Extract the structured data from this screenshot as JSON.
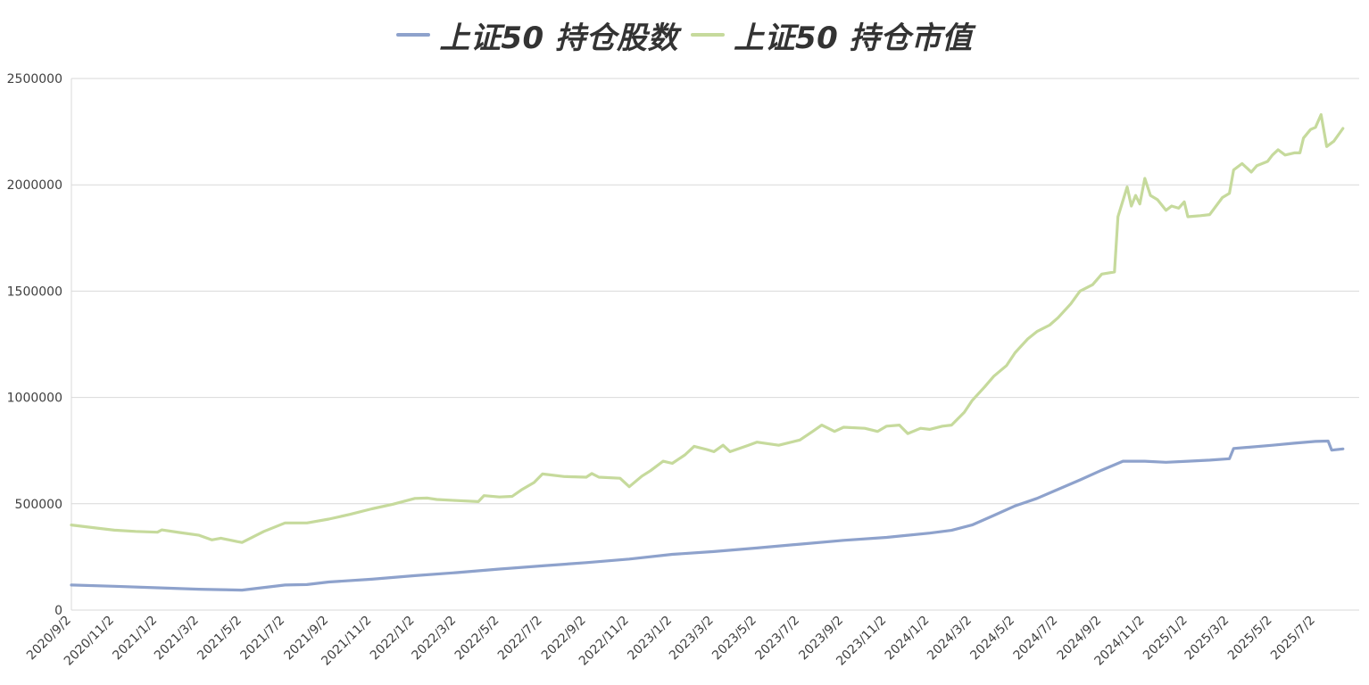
{
  "chart_data": {
    "type": "line",
    "title": "",
    "xlabel": "",
    "ylabel": "",
    "ylim": [
      0,
      2500000
    ],
    "y_ticks": [
      "0",
      "500000",
      "1000000",
      "1500000",
      "2000000",
      "2500000"
    ],
    "x_range": [
      "2020-09-02",
      "2025-09-02"
    ],
    "x_tick_labels": [
      {
        "date": "2020-09-02",
        "label": "2020/9/2"
      },
      {
        "date": "2020-11-02",
        "label": "2020/11/2"
      },
      {
        "date": "2021-01-02",
        "label": "2021/1/2"
      },
      {
        "date": "2021-03-02",
        "label": "2021/3/2"
      },
      {
        "date": "2021-05-02",
        "label": "2021/5/2"
      },
      {
        "date": "2021-07-02",
        "label": "2021/7/2"
      },
      {
        "date": "2021-09-02",
        "label": "2021/9/2"
      },
      {
        "date": "2021-11-02",
        "label": "2021/11/2"
      },
      {
        "date": "2022-01-02",
        "label": "2022/1/2"
      },
      {
        "date": "2022-03-02",
        "label": "2022/3/2"
      },
      {
        "date": "2022-05-02",
        "label": "2022/5/2"
      },
      {
        "date": "2022-07-02",
        "label": "2022/7/2"
      },
      {
        "date": "2022-09-02",
        "label": "2022/9/2"
      },
      {
        "date": "2022-11-02",
        "label": "2022/11/2"
      },
      {
        "date": "2023-01-02",
        "label": "2023/1/2"
      },
      {
        "date": "2023-03-02",
        "label": "2023/3/2"
      },
      {
        "date": "2023-05-02",
        "label": "2023/5/2"
      },
      {
        "date": "2023-07-02",
        "label": "2023/7/2"
      },
      {
        "date": "2023-09-02",
        "label": "2023/9/2"
      },
      {
        "date": "2023-11-02",
        "label": "2023/11/2"
      },
      {
        "date": "2024-01-02",
        "label": "2024/1/2"
      },
      {
        "date": "2024-03-02",
        "label": "2024/3/2"
      },
      {
        "date": "2024-05-02",
        "label": "2024/5/2"
      },
      {
        "date": "2024-07-02",
        "label": "2024/7/2"
      },
      {
        "date": "2024-09-02",
        "label": "2024/9/2"
      },
      {
        "date": "2024-11-02",
        "label": "2024/11/2"
      },
      {
        "date": "2025-01-02",
        "label": "2025/1/2"
      },
      {
        "date": "2025-03-02",
        "label": "2025/3/2"
      },
      {
        "date": "2025-05-02",
        "label": "2025/5/2"
      },
      {
        "date": "2025-07-02",
        "label": "2025/7/2"
      }
    ],
    "grid": true,
    "legend_position": "top-center",
    "series": [
      {
        "name": "上证50 持仓股数",
        "color": "#8ea2cc",
        "points": [
          [
            "2020-09-02",
            118000
          ],
          [
            "2020-11-02",
            112000
          ],
          [
            "2021-01-02",
            105000
          ],
          [
            "2021-03-02",
            98000
          ],
          [
            "2021-04-02",
            96000
          ],
          [
            "2021-05-02",
            94000
          ],
          [
            "2021-07-02",
            118000
          ],
          [
            "2021-08-02",
            120000
          ],
          [
            "2021-09-02",
            132000
          ],
          [
            "2021-11-02",
            145000
          ],
          [
            "2022-01-02",
            162000
          ],
          [
            "2022-03-02",
            176000
          ],
          [
            "2022-05-02",
            193000
          ],
          [
            "2022-07-02",
            208000
          ],
          [
            "2022-09-02",
            223000
          ],
          [
            "2022-11-02",
            240000
          ],
          [
            "2023-01-02",
            262000
          ],
          [
            "2023-03-02",
            275000
          ],
          [
            "2023-05-02",
            292000
          ],
          [
            "2023-07-02",
            310000
          ],
          [
            "2023-09-02",
            328000
          ],
          [
            "2023-11-02",
            342000
          ],
          [
            "2024-01-02",
            362000
          ],
          [
            "2024-02-02",
            375000
          ],
          [
            "2024-03-02",
            400000
          ],
          [
            "2024-04-02",
            445000
          ],
          [
            "2024-05-02",
            490000
          ],
          [
            "2024-06-02",
            525000
          ],
          [
            "2024-07-02",
            568000
          ],
          [
            "2024-08-02",
            612000
          ],
          [
            "2024-09-02",
            658000
          ],
          [
            "2024-10-02",
            700000
          ],
          [
            "2024-11-02",
            700000
          ],
          [
            "2024-12-02",
            695000
          ],
          [
            "2025-01-02",
            700000
          ],
          [
            "2025-02-02",
            705000
          ],
          [
            "2025-03-02",
            712000
          ],
          [
            "2025-03-08",
            760000
          ],
          [
            "2025-05-02",
            775000
          ],
          [
            "2025-06-02",
            785000
          ],
          [
            "2025-07-02",
            793000
          ],
          [
            "2025-07-20",
            795000
          ],
          [
            "2025-07-25",
            752000
          ],
          [
            "2025-08-10",
            758000
          ]
        ]
      },
      {
        "name": "上证50 持仓市值",
        "color": "#c6da9c",
        "points": [
          [
            "2020-09-02",
            400000
          ],
          [
            "2020-10-02",
            388000
          ],
          [
            "2020-11-02",
            376000
          ],
          [
            "2020-12-02",
            370000
          ],
          [
            "2021-01-02",
            366000
          ],
          [
            "2021-01-08",
            377000
          ],
          [
            "2021-02-02",
            365000
          ],
          [
            "2021-03-02",
            352000
          ],
          [
            "2021-03-20",
            330000
          ],
          [
            "2021-04-02",
            338000
          ],
          [
            "2021-04-25",
            322000
          ],
          [
            "2021-05-02",
            318000
          ],
          [
            "2021-06-02",
            370000
          ],
          [
            "2021-07-02",
            410000
          ],
          [
            "2021-08-02",
            410000
          ],
          [
            "2021-09-02",
            428000
          ],
          [
            "2021-10-02",
            450000
          ],
          [
            "2021-11-02",
            476000
          ],
          [
            "2021-12-02",
            498000
          ],
          [
            "2022-01-02",
            525000
          ],
          [
            "2022-01-20",
            527000
          ],
          [
            "2022-02-02",
            520000
          ],
          [
            "2022-03-02",
            515000
          ],
          [
            "2022-04-02",
            510000
          ],
          [
            "2022-04-10",
            538000
          ],
          [
            "2022-05-02",
            532000
          ],
          [
            "2022-05-20",
            535000
          ],
          [
            "2022-06-02",
            565000
          ],
          [
            "2022-06-20",
            600000
          ],
          [
            "2022-07-02",
            640000
          ],
          [
            "2022-08-02",
            628000
          ],
          [
            "2022-09-02",
            625000
          ],
          [
            "2022-09-10",
            642000
          ],
          [
            "2022-09-20",
            625000
          ],
          [
            "2022-10-20",
            620000
          ],
          [
            "2022-11-02",
            580000
          ],
          [
            "2022-11-20",
            630000
          ],
          [
            "2022-12-02",
            655000
          ],
          [
            "2022-12-20",
            700000
          ],
          [
            "2023-01-02",
            690000
          ],
          [
            "2023-01-20",
            730000
          ],
          [
            "2023-02-02",
            770000
          ],
          [
            "2023-02-20",
            755000
          ],
          [
            "2023-03-02",
            745000
          ],
          [
            "2023-03-15",
            775000
          ],
          [
            "2023-03-25",
            745000
          ],
          [
            "2023-04-20",
            775000
          ],
          [
            "2023-05-02",
            790000
          ],
          [
            "2023-06-02",
            775000
          ],
          [
            "2023-07-02",
            800000
          ],
          [
            "2023-07-20",
            840000
          ],
          [
            "2023-08-02",
            870000
          ],
          [
            "2023-08-20",
            840000
          ],
          [
            "2023-09-02",
            860000
          ],
          [
            "2023-10-02",
            855000
          ],
          [
            "2023-10-20",
            840000
          ],
          [
            "2023-11-02",
            865000
          ],
          [
            "2023-11-20",
            870000
          ],
          [
            "2023-12-02",
            830000
          ],
          [
            "2023-12-20",
            855000
          ],
          [
            "2024-01-02",
            850000
          ],
          [
            "2024-01-20",
            865000
          ],
          [
            "2024-02-02",
            870000
          ],
          [
            "2024-02-20",
            930000
          ],
          [
            "2024-03-02",
            985000
          ],
          [
            "2024-03-20",
            1050000
          ],
          [
            "2024-04-02",
            1100000
          ],
          [
            "2024-04-20",
            1150000
          ],
          [
            "2024-05-02",
            1210000
          ],
          [
            "2024-05-20",
            1275000
          ],
          [
            "2024-06-02",
            1310000
          ],
          [
            "2024-06-20",
            1340000
          ],
          [
            "2024-07-02",
            1375000
          ],
          [
            "2024-07-20",
            1440000
          ],
          [
            "2024-08-02",
            1500000
          ],
          [
            "2024-08-20",
            1530000
          ],
          [
            "2024-09-02",
            1580000
          ],
          [
            "2024-09-20",
            1590000
          ],
          [
            "2024-09-25",
            1850000
          ],
          [
            "2024-10-08",
            1990000
          ],
          [
            "2024-10-14",
            1900000
          ],
          [
            "2024-10-20",
            1950000
          ],
          [
            "2024-10-26",
            1910000
          ],
          [
            "2024-11-02",
            2030000
          ],
          [
            "2024-11-10",
            1950000
          ],
          [
            "2024-11-20",
            1930000
          ],
          [
            "2024-12-02",
            1880000
          ],
          [
            "2024-12-10",
            1900000
          ],
          [
            "2024-12-20",
            1890000
          ],
          [
            "2024-12-28",
            1920000
          ],
          [
            "2025-01-02",
            1850000
          ],
          [
            "2025-01-20",
            1855000
          ],
          [
            "2025-02-02",
            1860000
          ],
          [
            "2025-02-20",
            1940000
          ],
          [
            "2025-03-02",
            1960000
          ],
          [
            "2025-03-08",
            2070000
          ],
          [
            "2025-03-20",
            2100000
          ],
          [
            "2025-04-02",
            2060000
          ],
          [
            "2025-04-10",
            2090000
          ],
          [
            "2025-04-25",
            2110000
          ],
          [
            "2025-05-02",
            2140000
          ],
          [
            "2025-05-10",
            2165000
          ],
          [
            "2025-05-20",
            2140000
          ],
          [
            "2025-06-02",
            2150000
          ],
          [
            "2025-06-10",
            2150000
          ],
          [
            "2025-06-15",
            2220000
          ],
          [
            "2025-06-25",
            2260000
          ],
          [
            "2025-07-02",
            2270000
          ],
          [
            "2025-07-10",
            2330000
          ],
          [
            "2025-07-18",
            2180000
          ],
          [
            "2025-07-28",
            2205000
          ],
          [
            "2025-08-10",
            2265000
          ]
        ]
      }
    ]
  }
}
